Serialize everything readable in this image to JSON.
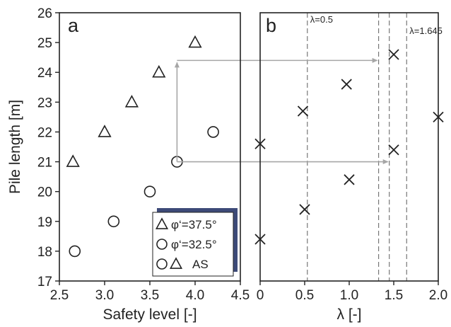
{
  "chart_data": [
    {
      "panel_label": "a",
      "type": "scatter",
      "xlabel": "Safety level [-]",
      "ylabel": "Pile length [m]",
      "xlim": [
        2.5,
        4.5
      ],
      "ylim": [
        17,
        26
      ],
      "xticks": [
        "2.5",
        "3.0",
        "3.5",
        "4.0",
        "4.5"
      ],
      "yticks": [
        "17",
        "18",
        "19",
        "20",
        "21",
        "22",
        "23",
        "24",
        "25",
        "26"
      ],
      "series": [
        {
          "name": "φ‘=37.5°",
          "marker": "triangle",
          "points": [
            [
              2.65,
              21
            ],
            [
              3.0,
              22
            ],
            [
              3.3,
              23
            ],
            [
              3.6,
              24
            ],
            [
              4.0,
              25
            ]
          ]
        },
        {
          "name": "φ‘=32.5°",
          "marker": "circle",
          "points": [
            [
              2.67,
              18
            ],
            [
              3.1,
              19
            ],
            [
              3.5,
              20
            ],
            [
              3.8,
              21
            ],
            [
              4.2,
              22
            ]
          ]
        }
      ],
      "legend": {
        "placement": "lower-right",
        "entries": [
          {
            "markers": [
              "triangle"
            ],
            "text": "φ‘=37.5°"
          },
          {
            "markers": [
              "circle"
            ],
            "text": "φ‘=32.5°"
          },
          {
            "markers": [
              "circle",
              "triangle"
            ],
            "text": "AS"
          }
        ]
      },
      "guide_lines": [
        {
          "from": [
            3.8,
            21.0
          ],
          "to": [
            3.8,
            24.4
          ],
          "arrow": "end"
        }
      ]
    },
    {
      "panel_label": "b",
      "type": "scatter",
      "xlabel": "λ [-]",
      "xlim": [
        0,
        2.0
      ],
      "ylim": [
        17,
        26
      ],
      "xticks": [
        "0",
        "0.5",
        "1.0",
        "1.5",
        "2.0"
      ],
      "series": [
        {
          "marker": "x",
          "points": [
            [
              0.0,
              18.4
            ],
            [
              0.5,
              19.4
            ],
            [
              1.0,
              20.4
            ],
            [
              1.5,
              21.4
            ],
            [
              2.0,
              22.5
            ],
            [
              0.0,
              21.6
            ],
            [
              0.48,
              22.7
            ],
            [
              0.97,
              23.6
            ],
            [
              1.5,
              24.6
            ]
          ]
        }
      ],
      "vertical_lines": [
        {
          "x": 0.53,
          "label": "λ=0.5"
        },
        {
          "x": 1.33
        },
        {
          "x": 1.45
        },
        {
          "x": 1.645,
          "label": "λ=1.645"
        }
      ]
    }
  ],
  "connector_arrows": [
    {
      "from": {
        "panel": 0,
        "x": 3.8,
        "y": 24.4
      },
      "to": {
        "panel": 1,
        "x": 1.33,
        "y": 24.4
      }
    },
    {
      "from": {
        "panel": 0,
        "x": 3.8,
        "y": 21.0
      },
      "to": {
        "panel": 1,
        "x": 1.45,
        "y": 21.0
      }
    }
  ],
  "colors": {
    "axes": "#222222",
    "markers": "#222222",
    "dashed": "#777777",
    "arrows": "#a6a6a6",
    "legend_shadow": "#3d4a78"
  }
}
